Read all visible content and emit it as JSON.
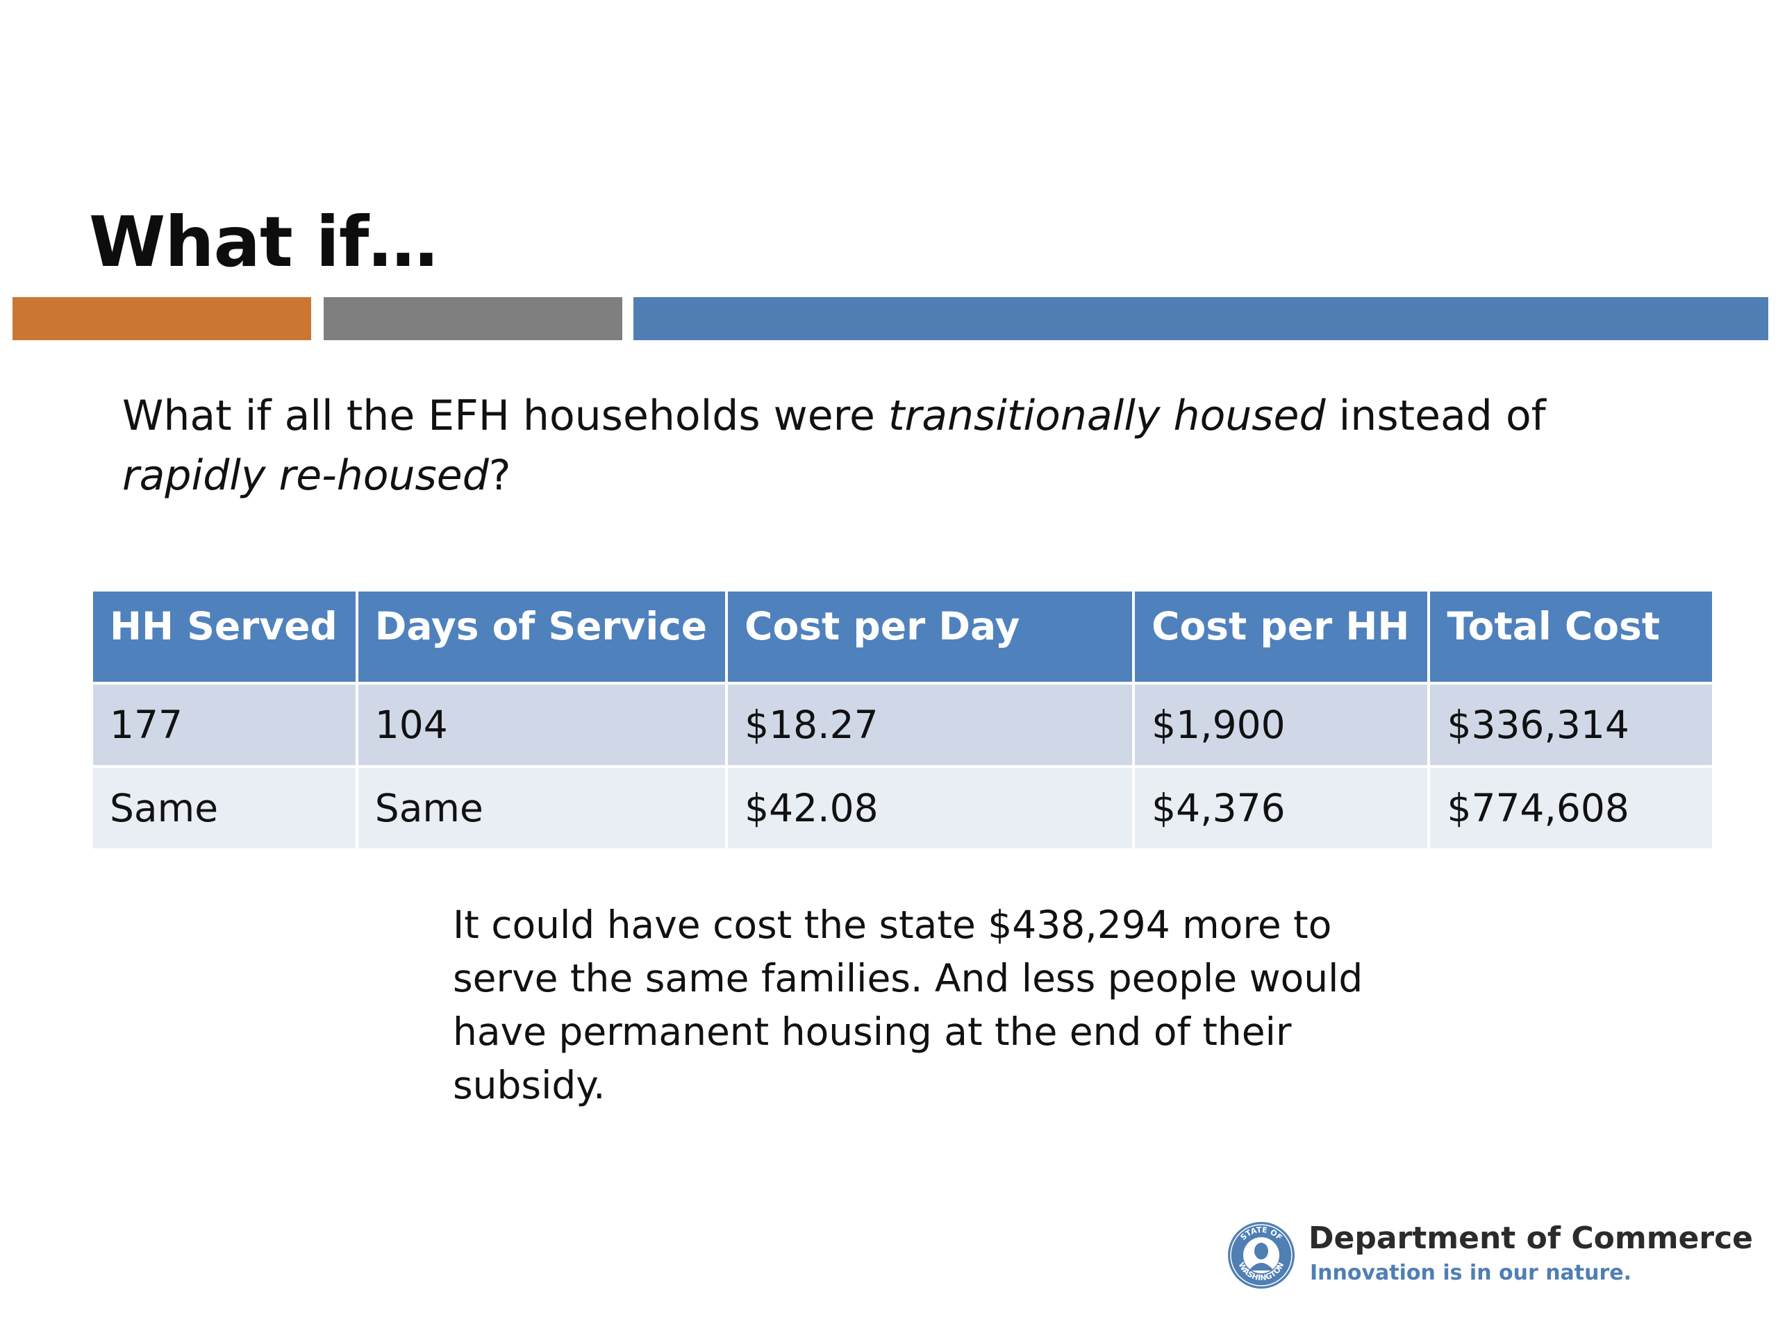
{
  "slide": {
    "title": "What if…",
    "question": {
      "part1": "What if all the EFH households were ",
      "italic1": "transitionally housed",
      "part2": " instead of ",
      "italic2": "rapidly re-housed",
      "part3": "?"
    },
    "conclusion": "It could have cost the state $438,294 more to serve the same families. And less people would have permanent housing at the end of their subsidy."
  },
  "accent_colors": {
    "orange": "#CC7634",
    "gray": "#7F7F7F",
    "blue": "#4F7FB3"
  },
  "table": {
    "headers": [
      "HH Served",
      "Days of Service",
      "Cost per Day",
      "Cost per HH",
      "Total Cost"
    ],
    "rows": [
      [
        "177",
        "104",
        "$18.27",
        "$1,900",
        "$336,314"
      ],
      [
        "Same",
        "Same",
        "$42.08",
        "$4,376",
        "$774,608"
      ]
    ]
  },
  "logo": {
    "seal_icon": "washington-state-seal-icon",
    "seal_text": "STATE OF WASHINGTON",
    "department": "Department of Commerce",
    "tagline": "Innovation is in our nature."
  }
}
